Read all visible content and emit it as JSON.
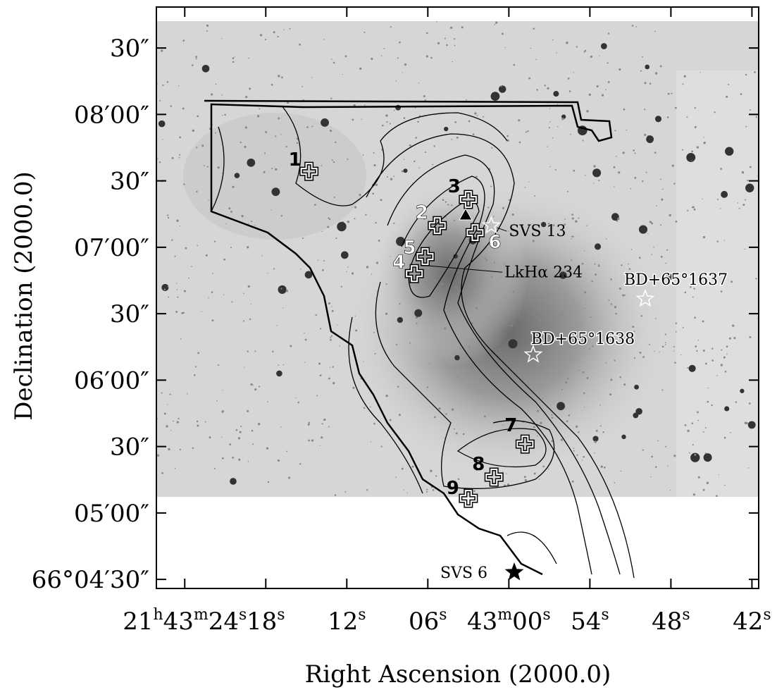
{
  "chart_data": {
    "type": "image",
    "x_label": "Right Ascension (2000.0)",
    "y_label": "Declination (2000.0)",
    "xlim": [
      86.1,
      41.5
    ],
    "ylim": [
      265.9,
      528.5
    ],
    "xticks": [
      {
        "value": 84,
        "label": [
          "21",
          "h",
          "43",
          "m",
          "24",
          "s"
        ]
      },
      {
        "value": 78,
        "label": [
          "18",
          "s"
        ]
      },
      {
        "value": 72,
        "label": [
          "12",
          "s"
        ]
      },
      {
        "value": 66,
        "label": [
          "06",
          "s"
        ]
      },
      {
        "value": 60,
        "label": [
          "43",
          "m",
          "00",
          "s"
        ]
      },
      {
        "value": 54,
        "label": [
          "54",
          "s"
        ]
      },
      {
        "value": 48,
        "label": [
          "48",
          "s"
        ]
      },
      {
        "value": 42,
        "label": [
          "42",
          "s"
        ]
      }
    ],
    "yticks": [
      {
        "value": 270,
        "label": "66°04′30″"
      },
      {
        "value": 300,
        "label": "05′00″"
      },
      {
        "value": 330,
        "label": "30″"
      },
      {
        "value": 360,
        "label": "06′00″"
      },
      {
        "value": 390,
        "label": "30″"
      },
      {
        "value": 420,
        "label": "07′00″"
      },
      {
        "value": 450,
        "label": "30″"
      },
      {
        "value": 480,
        "label": "08′00″"
      },
      {
        "value": 510,
        "label": "30″"
      }
    ],
    "sources": [
      {
        "label": "1",
        "x": 74.8,
        "y": 454.3
      },
      {
        "label": "2",
        "x": 65.3,
        "y": 429.8
      },
      {
        "label": "3",
        "x": 63.0,
        "y": 441.6
      },
      {
        "label": "4",
        "x": 67.0,
        "y": 408.1
      },
      {
        "label": "5",
        "x": 66.2,
        "y": 415.8
      },
      {
        "label": "6",
        "x": 62.5,
        "y": 426.6
      },
      {
        "label": "7",
        "x": 58.8,
        "y": 331.1
      },
      {
        "label": "8",
        "x": 61.1,
        "y": 316.2
      },
      {
        "label": "9",
        "x": 63.0,
        "y": 306.6
      }
    ],
    "stars": [
      {
        "label": "SVS 13",
        "x": 61.3,
        "y": 429.8
      },
      {
        "label": "BD+65°1637",
        "x": 49.9,
        "y": 396.7
      },
      {
        "label": "BD+65°1638",
        "x": 58.2,
        "y": 371.5
      },
      {
        "label": "SVS 6",
        "x": 59.6,
        "y": 273.2
      }
    ],
    "lkha": {
      "label": "LkHα 234",
      "x": 67.0,
      "y": 408.1
    },
    "triangle": {
      "x": 63.2,
      "y": 434.6
    }
  }
}
